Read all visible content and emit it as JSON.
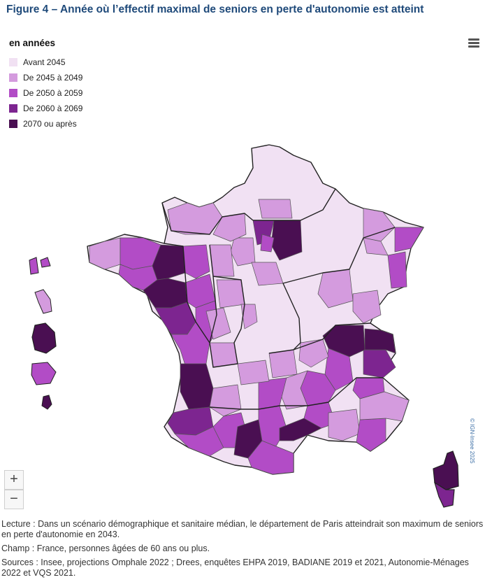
{
  "title": "Figure 4 – Année où l’effectif maximal de seniors en perte d'autonomie est atteint",
  "legend": {
    "title": "en années",
    "items": [
      {
        "label": "Avant 2045",
        "color": "#f1e1f3"
      },
      {
        "label": "De 2045 à 2049",
        "color": "#d49bde"
      },
      {
        "label": "De 2050 à 2059",
        "color": "#b24cc6"
      },
      {
        "label": "De 2060 à 2069",
        "color": "#7d2590"
      },
      {
        "label": "2070 ou après",
        "color": "#4a0f52"
      }
    ]
  },
  "controls": {
    "zoom_in": "+",
    "zoom_out": "−",
    "menu_icon": "hamburger-menu-icon"
  },
  "credit": "© IGN-Insee 2025",
  "notes": {
    "lecture": "Lecture : Dans un scénario démographique et sanitaire médian, le département de Paris atteindrait son maximum de seniors en perte d'autonomie en 2043.",
    "champ": "Champ : France, personnes âgées de 60 ans ou plus.",
    "sources": "Sources : Insee, projections Omphale 2022 ; Drees, enquêtes EHPA 2019, BADIANE 2019 et 2021, Autonomie-Ménages 2022 et VQS 2021."
  }
}
